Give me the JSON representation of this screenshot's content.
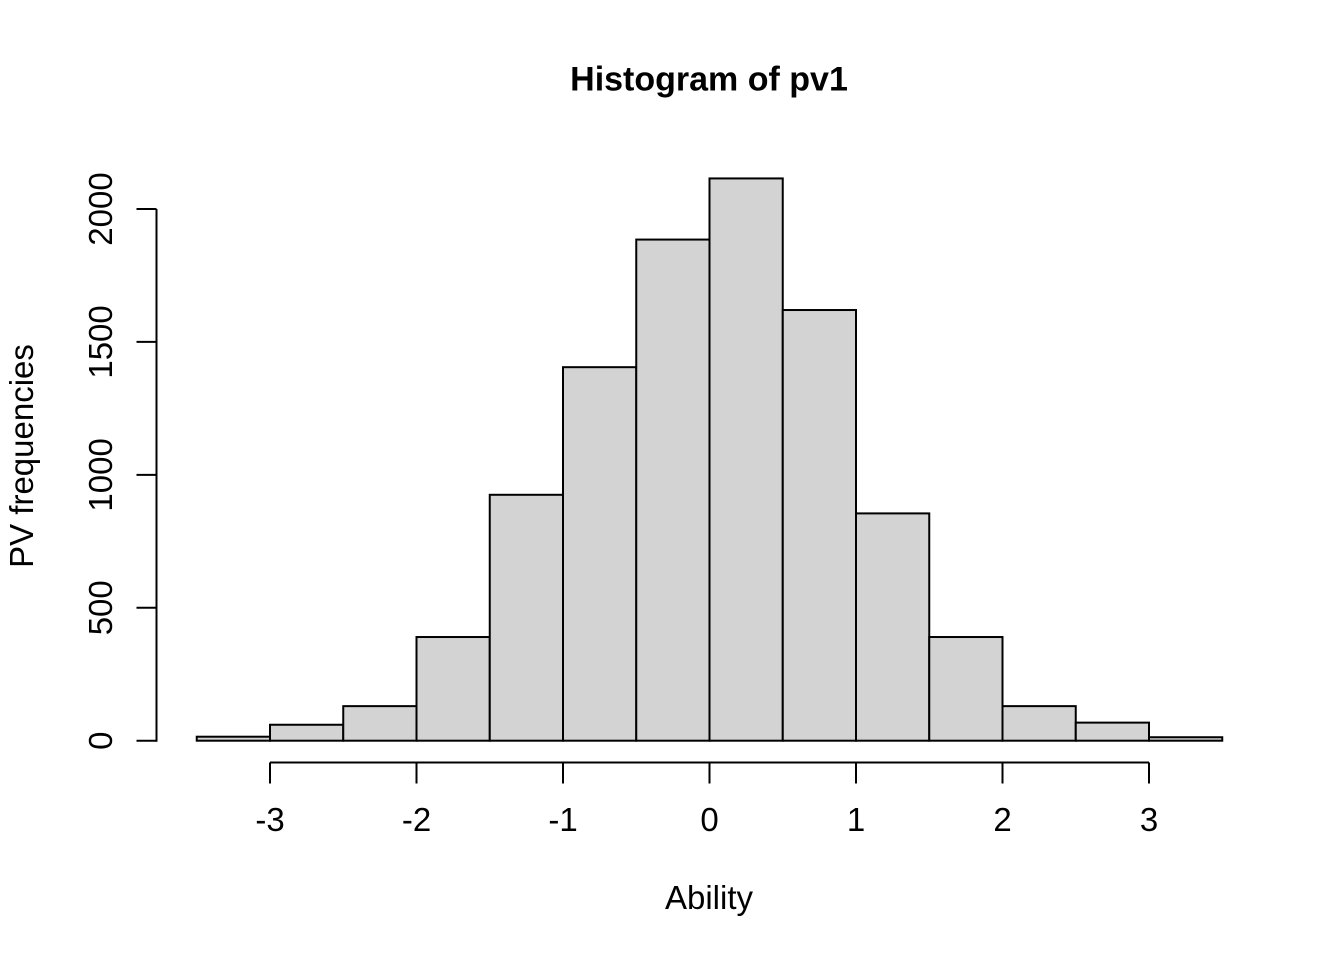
{
  "page": {
    "background": "#ffffff"
  },
  "chart_data": {
    "type": "bar",
    "subtype": "histogram",
    "title": "Histogram of pv1",
    "xlabel": "Ability",
    "ylabel": "PV frequencies",
    "bin_edges": [
      -3.5,
      -3,
      -2.5,
      -2,
      -1.5,
      -1,
      -0.5,
      0,
      0.5,
      1,
      1.5,
      2,
      2.5,
      3,
      3.5
    ],
    "values": [
      15,
      60,
      130,
      390,
      925,
      1405,
      1885,
      2115,
      1620,
      855,
      390,
      130,
      68,
      13
    ],
    "x_ticks": [
      -3,
      -2,
      -1,
      0,
      1,
      2,
      3
    ],
    "x_tick_labels": [
      "-3",
      "-2",
      "-1",
      "0",
      "1",
      "2",
      "3"
    ],
    "y_ticks": [
      0,
      500,
      1000,
      1500,
      2000
    ],
    "y_tick_labels": [
      "0",
      "500",
      "1000",
      "1500",
      "2000"
    ],
    "xlim": [
      -3.5,
      3.5
    ],
    "ylim": [
      0,
      2000
    ],
    "grid": false,
    "legend_position": "none",
    "bar_fill": "#d3d3d3",
    "bar_stroke": "#000000",
    "axis_color": "#000000",
    "text_color": "#000000"
  }
}
